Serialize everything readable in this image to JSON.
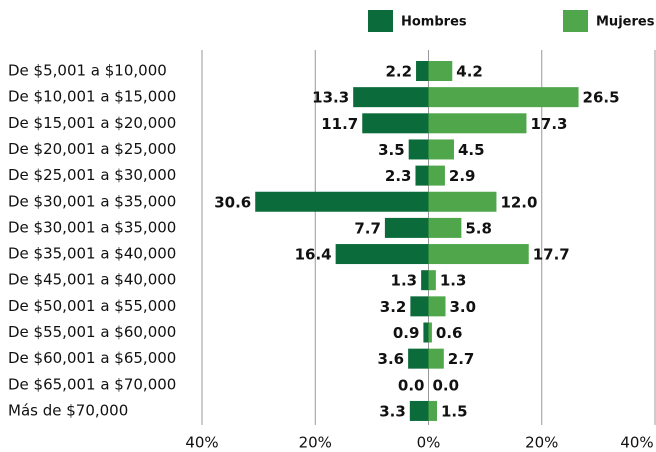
{
  "chart_data": {
    "type": "diverging-bar",
    "categories": [
      "De $5,001 a $10,000",
      "De $10,001 a $15,000",
      "De $15,001 a $20,000",
      "De $20,001 a $25,000",
      "De $25,001 a $30,000",
      "De $30,001 a $35,000",
      "De $30,001 a $35,000",
      "De $35,001 a $40,000",
      "De $45,001 a $40,000",
      "De $50,001 a $55,000",
      "De $55,001 a $60,000",
      "De $60,001 a $65,000",
      "De $65,001 a $70,000",
      "Más de $70,000"
    ],
    "series": [
      {
        "name": "Hombres",
        "color": "#0b6b3a",
        "side": "left",
        "values": [
          2.2,
          13.3,
          11.7,
          3.5,
          2.3,
          30.6,
          7.7,
          16.4,
          1.3,
          3.2,
          0.9,
          3.6,
          0.0,
          3.3
        ],
        "value_labels": [
          "2.2",
          "13.3",
          "11.7",
          "3.5",
          "2.3",
          "30.6",
          "7.7",
          "16.4",
          "1.3",
          "3.2",
          "0.9",
          "3.6",
          "0.0",
          "3.3"
        ]
      },
      {
        "name": "Mujeres",
        "color": "#4fa64b",
        "side": "right",
        "values": [
          4.2,
          26.5,
          17.3,
          4.5,
          2.9,
          12.0,
          5.8,
          17.7,
          1.3,
          3.0,
          0.6,
          2.7,
          0.0,
          1.5
        ],
        "value_labels": [
          "4.2",
          "26.5",
          "17.3",
          "4.5",
          "2.9",
          "12.0",
          "5.8",
          "17.7",
          "1.3",
          "3.0",
          "0.6",
          "2.7",
          "0.0",
          "1.5"
        ]
      }
    ],
    "xlim": [
      -40,
      40
    ],
    "xticks": [
      {
        "value": -40,
        "label": "40%"
      },
      {
        "value": -20,
        "label": "20%"
      },
      {
        "value": 0,
        "label": "0%"
      },
      {
        "value": 20,
        "label": "20%"
      },
      {
        "value": 40,
        "label": "40%"
      }
    ],
    "grid": true
  }
}
